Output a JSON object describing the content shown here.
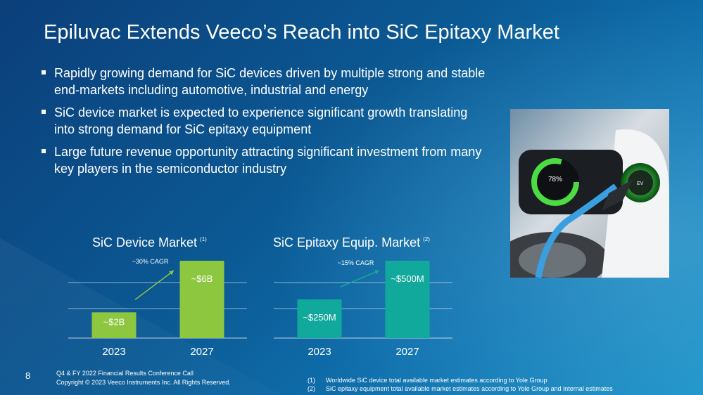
{
  "slide": {
    "title": "Epiluvac Extends Veeco’s Reach into SiC Epitaxy Market",
    "bullets": [
      "Rapidly growing demand for SiC devices driven by multiple strong and stable end-markets including automotive, industrial and energy",
      "SiC device market is expected to experience significant growth translating into strong demand for SiC epitaxy equipment",
      "Large future revenue opportunity attracting significant investment from many key players in the semiconductor industry"
    ],
    "page_number": "8",
    "footer_line1": "Q4 & FY 2022 Financial Results Conference Call",
    "footer_line2": "Copyright © 2023 Veeco Instruments Inc. All Rights Reserved.",
    "footnotes": [
      {
        "num": "(1)",
        "text": "Worldwide SiC device total available market estimates according to Yole Group"
      },
      {
        "num": "(2)",
        "text": "SiC epitaxy equipment total available market estimates according to Yole Group and internal estimates"
      }
    ],
    "photo_icon": "ev-charging-photo",
    "photo_display": {
      "percent": "78%",
      "badge": "EV"
    }
  },
  "chart_data": [
    {
      "type": "bar",
      "title": "SiC Device Market",
      "title_ref": "(1)",
      "categories": [
        "2023",
        "2027"
      ],
      "values": [
        2,
        6
      ],
      "unit": "B",
      "data_labels": [
        "~$2B",
        "~$6B"
      ],
      "annotation": "~30% CAGR",
      "ylim": [
        0,
        6.6
      ],
      "grid": true,
      "bar_color": "#8dc63f"
    },
    {
      "type": "bar",
      "title": "SiC Epitaxy Equip. Market",
      "title_ref": "(2)",
      "categories": [
        "2023",
        "2027"
      ],
      "values": [
        250,
        500
      ],
      "unit": "M",
      "data_labels": [
        "~$250M",
        "~$500M"
      ],
      "annotation": "~15% CAGR",
      "ylim": [
        0,
        550
      ],
      "grid": true,
      "bar_color": "#11a99b"
    }
  ]
}
